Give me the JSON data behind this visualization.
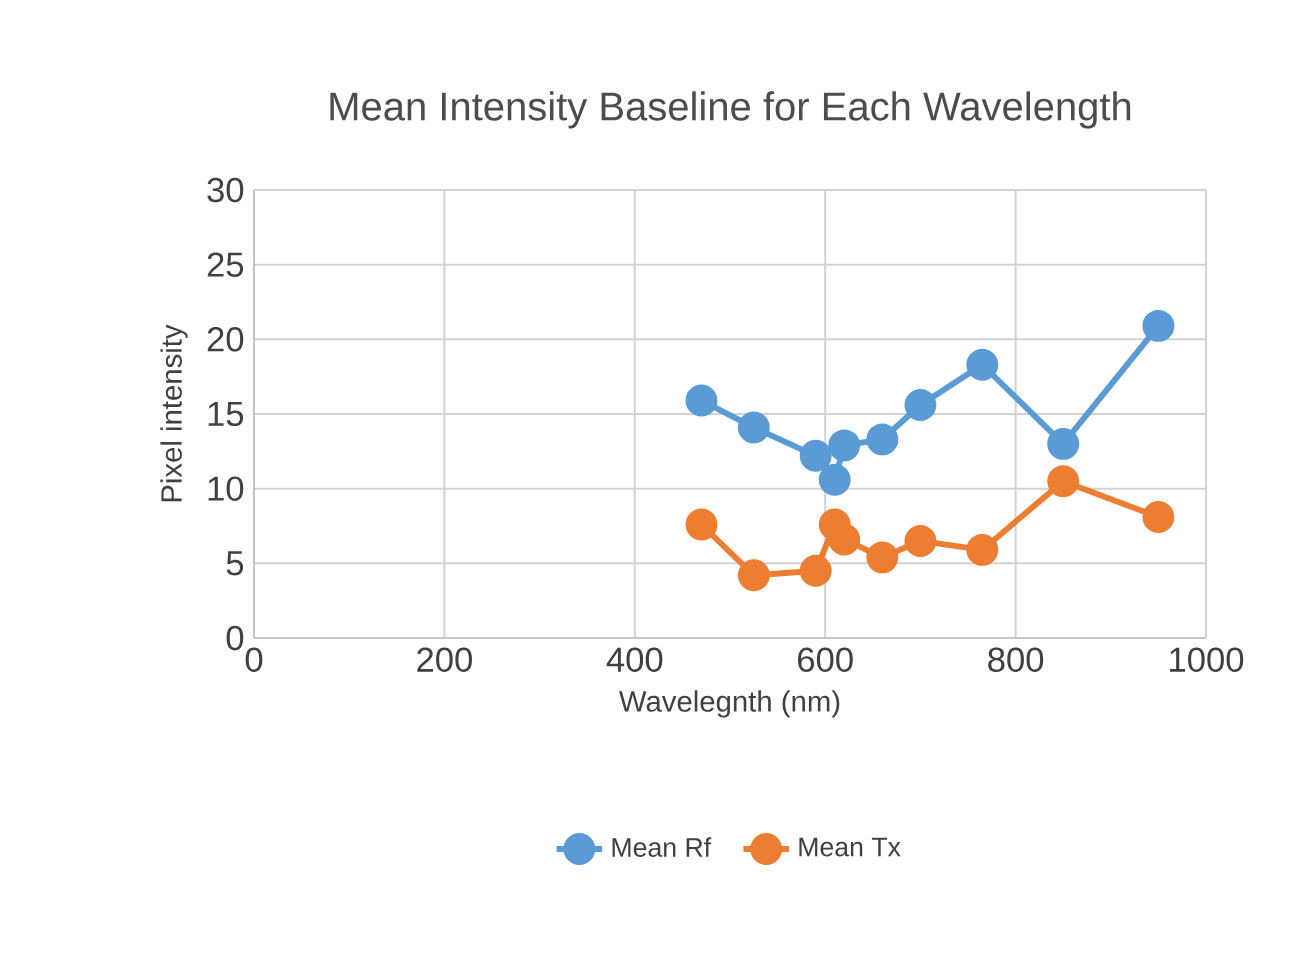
{
  "chart_data": {
    "type": "line",
    "title": "Mean Intensity Baseline for Each Wavelength",
    "xlabel": "Wavelegnth (nm)",
    "ylabel": "Pixel intensity",
    "x": [
      470,
      525,
      590,
      610,
      620,
      660,
      700,
      765,
      850,
      950
    ],
    "series": [
      {
        "name": "Mean Rf",
        "color": "#5b9bd5",
        "values": [
          15.9,
          14.1,
          12.2,
          10.6,
          12.9,
          13.3,
          15.6,
          18.3,
          13.0,
          20.9
        ]
      },
      {
        "name": "Mean Tx",
        "color": "#ed7d31",
        "values": [
          7.6,
          4.2,
          4.5,
          7.6,
          6.6,
          5.4,
          6.5,
          5.9,
          10.5,
          8.1
        ]
      }
    ],
    "xlim": [
      0,
      1000
    ],
    "xticks": [
      0,
      200,
      400,
      600,
      800,
      1000
    ],
    "ylim": [
      0,
      30
    ],
    "yticks": [
      0,
      5,
      10,
      15,
      20,
      25,
      30
    ],
    "grid": true,
    "legend": "bottom",
    "marker": "circle",
    "line_style": "solid"
  }
}
